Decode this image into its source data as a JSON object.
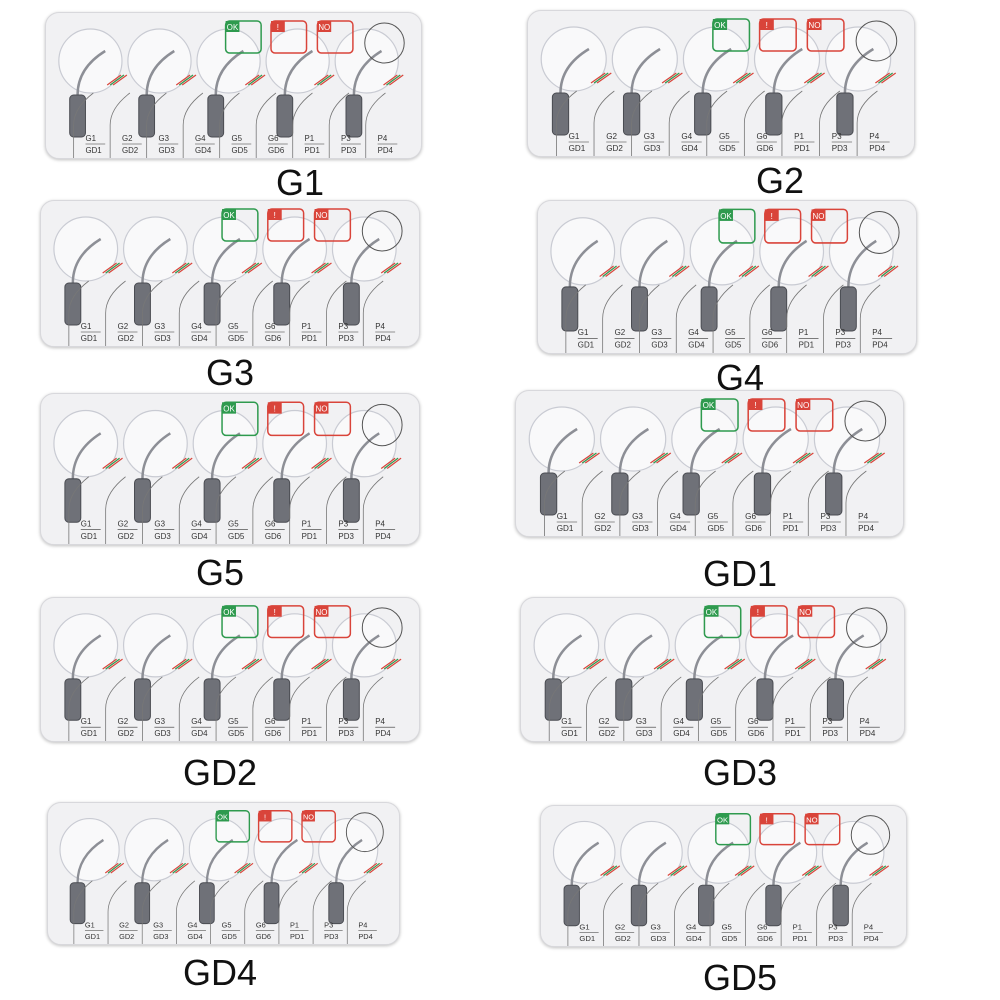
{
  "slot_labels": [
    {
      "top": "G1",
      "bottom": "GD1"
    },
    {
      "top": "G2",
      "bottom": "GD2"
    },
    {
      "top": "G3",
      "bottom": "GD3"
    },
    {
      "top": "G4",
      "bottom": "GD4"
    },
    {
      "top": "G5",
      "bottom": "GD5"
    },
    {
      "top": "G6",
      "bottom": "GD6"
    },
    {
      "top": "P1",
      "bottom": "PD1"
    },
    {
      "top": "P3",
      "bottom": "PD3"
    },
    {
      "top": "P4",
      "bottom": "PD4"
    }
  ],
  "badges": {
    "ok": "OK",
    "warning": "!",
    "no": "NO",
    "ok_color": "#2e9a4e",
    "warn_color": "#d9443a",
    "no_color": "#d9443a"
  },
  "products": [
    {
      "caption": "G1"
    },
    {
      "caption": "G2"
    },
    {
      "caption": "G3"
    },
    {
      "caption": "G4"
    },
    {
      "caption": "G5"
    },
    {
      "caption": "GD1"
    },
    {
      "caption": "GD2"
    },
    {
      "caption": "GD3"
    },
    {
      "caption": "GD4"
    },
    {
      "caption": "GD5"
    }
  ]
}
